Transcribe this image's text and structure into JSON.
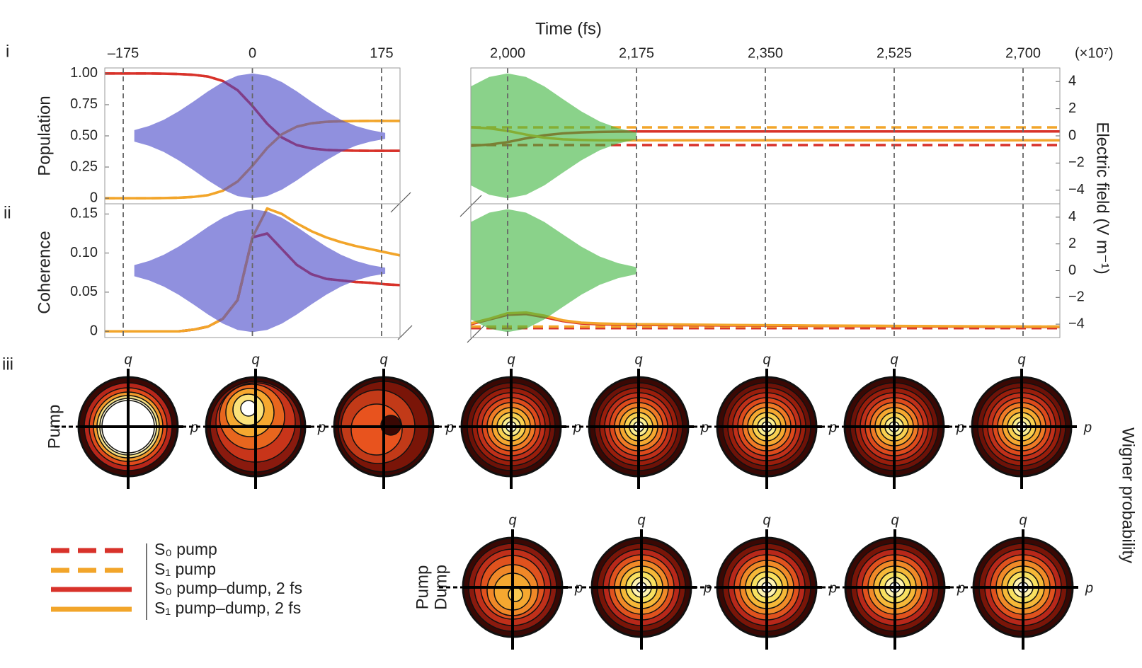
{
  "panel_labels": [
    "i",
    "ii",
    "iii"
  ],
  "xlabel": "Time (fs)",
  "field_scale": "(×10⁷)",
  "chart_data": [
    {
      "type": "line",
      "ylabel": "Population",
      "grid": true,
      "x": [
        -200,
        -180,
        -160,
        -140,
        -120,
        -100,
        -80,
        -60,
        -40,
        -20,
        0,
        20,
        40,
        60,
        80,
        100,
        120,
        140,
        160,
        180,
        200
      ],
      "xlim": [
        -200,
        200
      ],
      "xticks": [
        {
          "value": -175,
          "label": "–175"
        },
        0,
        175
      ],
      "ylim": [
        -0.045,
        1.045
      ],
      "yticks": [
        {
          "value": 1,
          "label": "1.00"
        },
        0.75,
        {
          "value": 0.5,
          "label": "0.50"
        },
        0.25,
        0
      ],
      "y2lim": [
        -5,
        5
      ],
      "series": [
        {
          "name": "S₀ pump",
          "color": "#d8322a",
          "dash": true,
          "values": [
            1,
            1,
            1,
            1,
            0.999,
            0.996,
            0.99,
            0.976,
            0.94,
            0.866,
            0.74,
            0.597,
            0.487,
            0.426,
            0.399,
            0.387,
            0.383,
            0.381,
            0.38,
            0.38,
            0.38
          ]
        },
        {
          "name": "S₁ pump",
          "color": "#f2a52a",
          "dash": true,
          "values": [
            0,
            0,
            0,
            0,
            0.001,
            0.004,
            0.01,
            0.024,
            0.06,
            0.134,
            0.26,
            0.403,
            0.513,
            0.574,
            0.601,
            0.613,
            0.617,
            0.619,
            0.62,
            0.62,
            0.62
          ]
        },
        {
          "name": "S₀ pump–dump, 2 fs",
          "color": "#d8322a",
          "dash": false,
          "values": [
            1,
            1,
            1,
            1,
            0.999,
            0.996,
            0.99,
            0.976,
            0.94,
            0.866,
            0.74,
            0.597,
            0.487,
            0.426,
            0.399,
            0.387,
            0.383,
            0.381,
            0.38,
            0.38,
            0.38
          ]
        },
        {
          "name": "S₁ pump–dump, 2 fs",
          "color": "#f2a52a",
          "dash": false,
          "values": [
            0,
            0,
            0,
            0,
            0.001,
            0.004,
            0.01,
            0.024,
            0.06,
            0.134,
            0.26,
            0.403,
            0.513,
            0.574,
            0.601,
            0.613,
            0.617,
            0.619,
            0.62,
            0.62,
            0.62
          ]
        }
      ],
      "field": {
        "axis": "y2",
        "color": "#4646c8",
        "upper": [
          null,
          null,
          0.42,
          0.73,
          1.19,
          1.8,
          2.52,
          3.28,
          3.96,
          4.43,
          4.6,
          4.43,
          3.96,
          3.28,
          2.52,
          1.8,
          1.19,
          0.73,
          0.42,
          0.22,
          null
        ],
        "lower": [
          null,
          null,
          -0.42,
          -0.73,
          -1.19,
          -1.8,
          -2.52,
          -3.28,
          -3.96,
          -4.43,
          -4.6,
          -4.43,
          -3.96,
          -3.28,
          -2.52,
          -1.8,
          -1.19,
          -0.73,
          -0.42,
          -0.22,
          null
        ]
      }
    },
    {
      "type": "line",
      "grid": true,
      "y2label": "Electric field (V m⁻¹)",
      "x": [
        1950,
        1975,
        2000,
        2025,
        2050,
        2075,
        2100,
        2125,
        2150,
        2175,
        2200,
        2300,
        2400,
        2500,
        2600,
        2700,
        2750
      ],
      "xlim": [
        1950,
        2750
      ],
      "xticks": [
        {
          "value": 2000,
          "label": "2,000"
        },
        {
          "value": 2175,
          "label": "2,175"
        },
        {
          "value": 2350,
          "label": "2,350"
        },
        {
          "value": 2525,
          "label": "2,525"
        },
        {
          "value": 2700,
          "label": "2,700"
        }
      ],
      "ylim": [
        -0.045,
        1.045
      ],
      "y2lim": [
        -5,
        5
      ],
      "y2ticks": [
        4,
        2,
        0,
        {
          "value": -2,
          "label": "−2"
        },
        {
          "value": -4,
          "label": "−4"
        }
      ],
      "series": [
        {
          "color": "#d8322a",
          "dash": true,
          "values": [
            0.426,
            0.426,
            0.426,
            0.426,
            0.426,
            0.426,
            0.426,
            0.426,
            0.426,
            0.426,
            0.426,
            0.426,
            0.426,
            0.426,
            0.426,
            0.426,
            0.426
          ]
        },
        {
          "color": "#f2a52a",
          "dash": true,
          "values": [
            0.568,
            0.568,
            0.568,
            0.568,
            0.568,
            0.568,
            0.568,
            0.568,
            0.568,
            0.568,
            0.568,
            0.568,
            0.568,
            0.568,
            0.568,
            0.568,
            0.568
          ]
        },
        {
          "color": "#d8322a",
          "dash": false,
          "values": [
            0.42,
            0.43,
            0.45,
            0.48,
            0.505,
            0.52,
            0.528,
            0.532,
            0.534,
            0.535,
            0.535,
            0.535,
            0.535,
            0.535,
            0.535,
            0.535,
            0.535
          ]
        },
        {
          "color": "#f2a52a",
          "dash": false,
          "values": [
            0.57,
            0.56,
            0.54,
            0.51,
            0.485,
            0.472,
            0.467,
            0.465,
            0.465,
            0.465,
            0.465,
            0.465,
            0.465,
            0.465,
            0.465,
            0.465,
            0.465
          ]
        }
      ],
      "field": {
        "axis": "y2",
        "color": "#3cb43c",
        "upper": [
          3.64,
          4.34,
          4.6,
          4.34,
          3.64,
          2.71,
          1.8,
          1.06,
          0.56,
          0.26,
          null,
          null,
          null,
          null,
          null,
          null,
          null
        ],
        "lower": [
          -3.64,
          -4.34,
          -4.6,
          -4.34,
          -3.64,
          -2.71,
          -1.8,
          -1.06,
          -0.56,
          -0.26,
          null,
          null,
          null,
          null,
          null,
          null,
          null
        ]
      }
    },
    {
      "type": "line",
      "ylabel": "Coherence",
      "grid": true,
      "x": [
        -200,
        -180,
        -160,
        -140,
        -120,
        -100,
        -80,
        -60,
        -40,
        -20,
        0,
        20,
        40,
        60,
        80,
        100,
        120,
        140,
        160,
        180,
        200
      ],
      "xlim": [
        -200,
        200
      ],
      "xticks": [
        -175,
        0,
        175
      ],
      "ylim": [
        -0.008,
        0.163
      ],
      "yticks": [
        0.15,
        {
          "value": 0.1,
          "label": "0.10"
        },
        0.05,
        0
      ],
      "y2lim": [
        -5,
        5
      ],
      "series": [
        {
          "color": "#d8322a",
          "dash": true,
          "values": [
            0,
            0,
            0,
            0,
            0,
            0,
            0.002,
            0.006,
            0.016,
            0.04,
            0.12,
            0.125,
            0.105,
            0.085,
            0.073,
            0.067,
            0.065,
            0.063,
            0.062,
            0.06,
            0.059
          ]
        },
        {
          "color": "#f2a52a",
          "dash": true,
          "values": [
            0,
            0,
            0,
            0,
            0,
            0,
            0.002,
            0.006,
            0.016,
            0.04,
            0.12,
            0.157,
            0.15,
            0.138,
            0.128,
            0.12,
            0.114,
            0.109,
            0.105,
            0.101,
            0.097
          ]
        },
        {
          "color": "#d8322a",
          "dash": false,
          "values": [
            0,
            0,
            0,
            0,
            0,
            0,
            0.002,
            0.006,
            0.016,
            0.04,
            0.12,
            0.125,
            0.105,
            0.085,
            0.073,
            0.067,
            0.065,
            0.063,
            0.062,
            0.06,
            0.059
          ]
        },
        {
          "color": "#f2a52a",
          "dash": false,
          "values": [
            0,
            0,
            0,
            0,
            0,
            0,
            0.002,
            0.006,
            0.016,
            0.04,
            0.12,
            0.157,
            0.15,
            0.138,
            0.128,
            0.12,
            0.114,
            0.109,
            0.105,
            0.101,
            0.097
          ]
        }
      ],
      "field": {
        "axis": "y2",
        "color": "#4646c8",
        "upper": [
          null,
          null,
          0.42,
          0.73,
          1.19,
          1.8,
          2.52,
          3.28,
          3.96,
          4.43,
          4.6,
          4.43,
          3.96,
          3.28,
          2.52,
          1.8,
          1.19,
          0.73,
          0.42,
          0.22,
          null
        ],
        "lower": [
          null,
          null,
          -0.42,
          -0.73,
          -1.19,
          -1.8,
          -2.52,
          -3.28,
          -3.96,
          -4.43,
          -4.6,
          -4.43,
          -3.96,
          -3.28,
          -2.52,
          -1.8,
          -1.19,
          -0.73,
          -0.42,
          -0.22,
          null
        ]
      }
    },
    {
      "type": "line",
      "grid": true,
      "x": [
        1950,
        1975,
        2000,
        2025,
        2050,
        2075,
        2100,
        2125,
        2150,
        2175,
        2200,
        2300,
        2400,
        2500,
        2600,
        2700,
        2750
      ],
      "xlim": [
        1950,
        2750
      ],
      "xticks": [
        2000,
        2175,
        2350,
        2525,
        2700
      ],
      "ylim": [
        -0.008,
        0.163
      ],
      "y2lim": [
        -5,
        5
      ],
      "y2ticks": [
        4,
        2,
        0,
        {
          "value": -2,
          "label": "−2"
        },
        {
          "value": -4,
          "label": "−4"
        }
      ],
      "series": [
        {
          "color": "#d8322a",
          "dash": true,
          "values": [
            0.004,
            0.004,
            0.004,
            0.004,
            0.004,
            0.004,
            0.004,
            0.004,
            0.004,
            0.004,
            0.004,
            0.004,
            0.004,
            0.004,
            0.004,
            0.004,
            0.004
          ]
        },
        {
          "color": "#f2a52a",
          "dash": true,
          "values": [
            0.006,
            0.006,
            0.006,
            0.006,
            0.006,
            0.006,
            0.006,
            0.006,
            0.006,
            0.006,
            0.006,
            0.006,
            0.006,
            0.006,
            0.006,
            0.006,
            0.006
          ]
        },
        {
          "color": "#d8322a",
          "dash": false,
          "values": [
            0.009,
            0.015,
            0.021,
            0.022,
            0.018,
            0.013,
            0.01,
            0.009,
            0.0085,
            0.008,
            0.008,
            0.0075,
            0.007,
            0.0065,
            0.006,
            0.0055,
            0.0055
          ]
        },
        {
          "color": "#f2a52a",
          "dash": false,
          "values": [
            0.01,
            0.016,
            0.023,
            0.024,
            0.02,
            0.014,
            0.011,
            0.01,
            0.0095,
            0.009,
            0.009,
            0.008,
            0.0075,
            0.007,
            0.0065,
            0.006,
            0.006
          ]
        }
      ],
      "field": {
        "axis": "y2",
        "color": "#3cb43c",
        "upper": [
          3.64,
          4.34,
          4.6,
          4.34,
          3.64,
          2.71,
          1.8,
          1.06,
          0.56,
          0.26,
          null,
          null,
          null,
          null,
          null,
          null,
          null
        ],
        "lower": [
          -3.64,
          -4.34,
          -4.6,
          -4.34,
          -3.64,
          -2.71,
          -1.8,
          -1.06,
          -0.56,
          -0.26,
          null,
          null,
          null,
          null,
          null,
          null,
          null
        ]
      }
    }
  ],
  "wigner": {
    "colorbar_label": "Wigner probability",
    "rows": [
      {
        "label": [
          "Pump"
        ],
        "axes": [
          {
            "q": "q",
            "p": "p"
          },
          {
            "q": "q",
            "p": "p"
          },
          {
            "q": "q",
            "p": "p"
          },
          {
            "q": "q",
            "p": "p"
          },
          {
            "q": "q",
            "p": "p"
          },
          {
            "q": "q",
            "p": "p"
          },
          {
            "q": "q",
            "p": "p"
          },
          {
            "q": "q",
            "p": "p"
          }
        ]
      },
      {
        "label": [
          "Pump",
          "Dump"
        ],
        "axes": [
          {
            "q": "q",
            "p": "p"
          },
          {
            "q": "q",
            "p": "p"
          },
          {
            "q": "q",
            "p": "p"
          },
          {
            "q": "q",
            "p": "p"
          },
          {
            "q": "q",
            "p": "p"
          }
        ]
      }
    ]
  }
}
